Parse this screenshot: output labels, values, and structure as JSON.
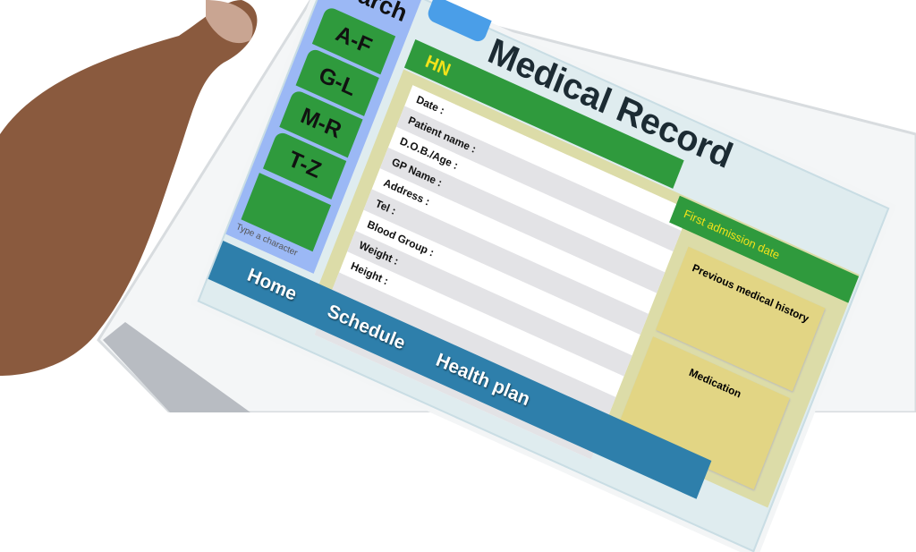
{
  "search": {
    "title": "Search",
    "tabs": [
      "A-F",
      "G-L",
      "M-R",
      "T-Z"
    ],
    "hint": "Type a character"
  },
  "header": {
    "title": "Medical Record",
    "hn_label": "HN",
    "first_admission_label": "First admission date"
  },
  "form": {
    "fields": [
      "Date :",
      "Patient name :",
      "D.O.B./Age :",
      "GP Name :",
      "Address :",
      "Tel :",
      "Blood Group :",
      "Weight :",
      "Height :"
    ]
  },
  "panels": {
    "history": "Previous medical history",
    "medication": "Medication"
  },
  "nav": {
    "items": [
      "Home",
      "Schedule",
      "Health plan"
    ]
  },
  "colors": {
    "green": "#2f9a3d",
    "yellow_text": "#f2e21a",
    "nav_blue": "#2e7fab",
    "search_blue": "#9bb8f5"
  }
}
